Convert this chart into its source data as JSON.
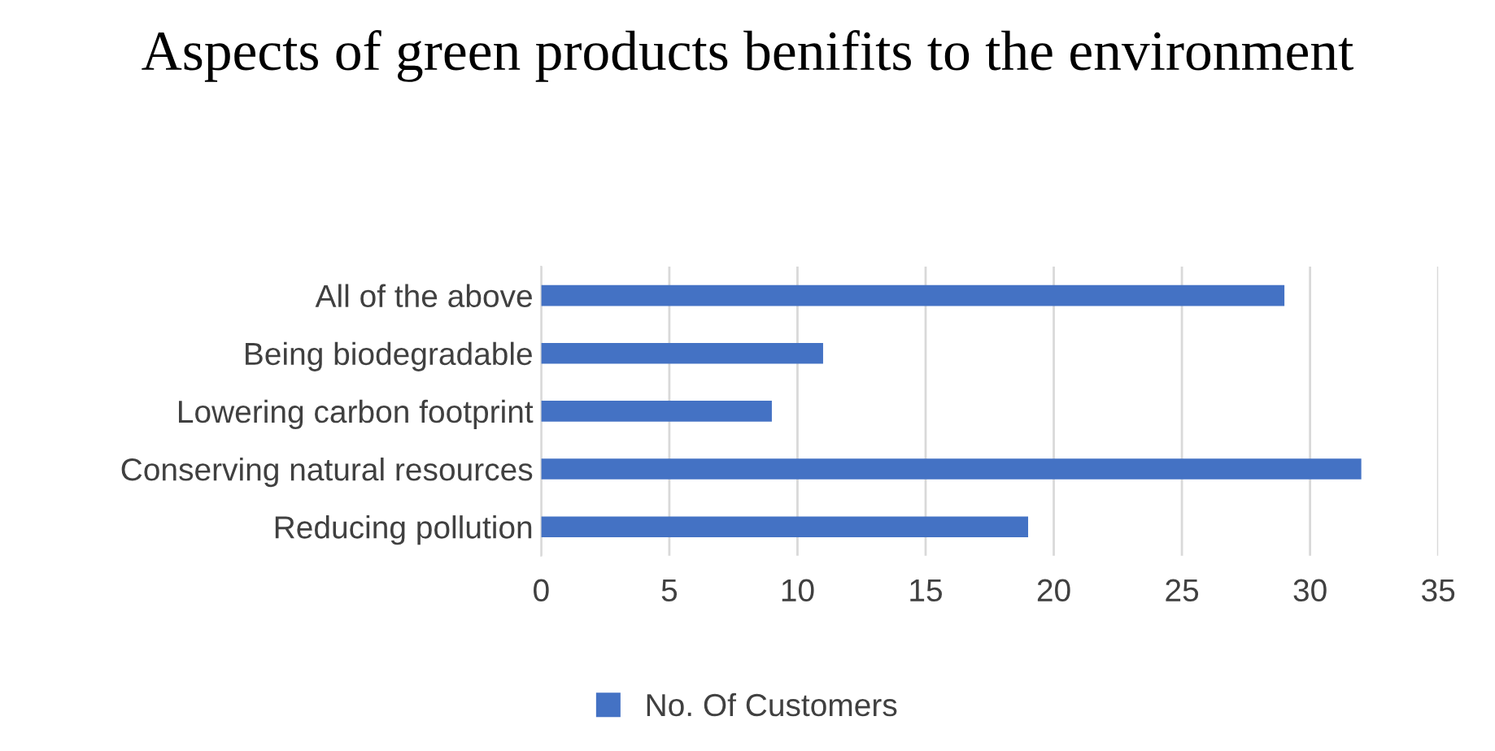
{
  "chart_data": {
    "type": "bar",
    "orientation": "horizontal",
    "title": "Aspects of green products benifits to the environment",
    "categories": [
      "All of the above",
      "Being biodegradable",
      "Lowering carbon footprint",
      "Conserving natural resources",
      "Reducing pollution"
    ],
    "series": [
      {
        "name": "No. Of Customers",
        "color": "#4472c4",
        "values": [
          29,
          11,
          9,
          32,
          19
        ]
      }
    ],
    "xlim": [
      0,
      35
    ],
    "xticks": [
      0,
      5,
      10,
      15,
      20,
      25,
      30,
      35
    ],
    "grid": "x",
    "legend": "bottom"
  }
}
